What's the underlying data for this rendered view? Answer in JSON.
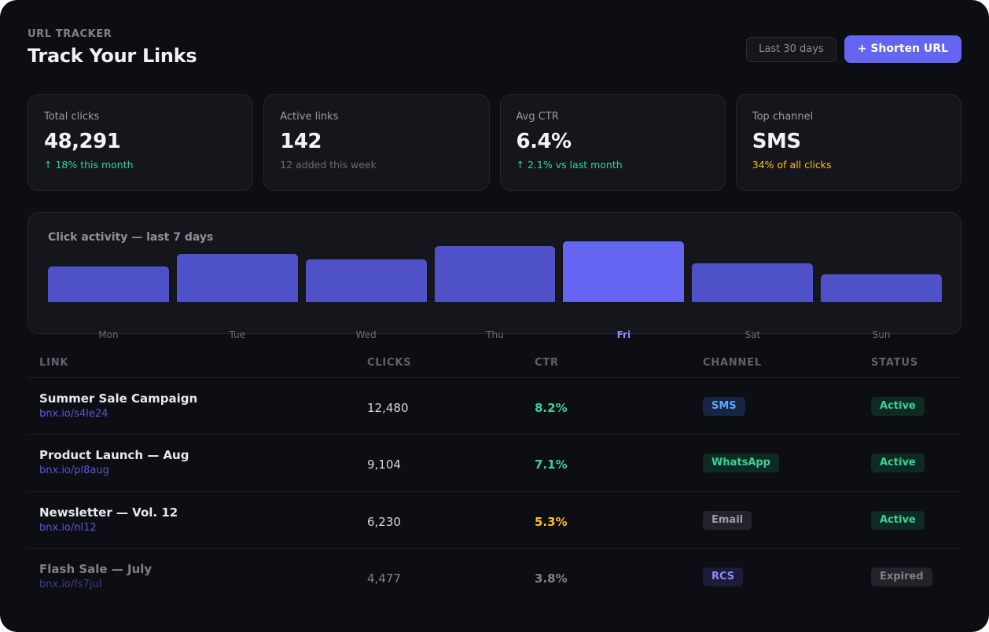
{
  "header": {
    "eyebrow": "URL TRACKER",
    "title": "Track Your Links",
    "range_button": "Last 30 days",
    "primary_button": "+ Shorten URL"
  },
  "stats": [
    {
      "label": "Total clicks",
      "value": "48,291",
      "sub": "↑ 18% this month",
      "sub_color": "#34d399"
    },
    {
      "label": "Active links",
      "value": "142",
      "sub": "12 added this week",
      "sub_color": "#6a6c75"
    },
    {
      "label": "Avg CTR",
      "value": "6.4%",
      "sub": "↑ 2.1% vs last month",
      "sub_color": "#34d399"
    },
    {
      "label": "Top channel",
      "value": "SMS",
      "sub": "34% of all clicks",
      "sub_color": "#fbbf24"
    }
  ],
  "chart_data": {
    "type": "bar",
    "title": "Click activity — last 7 days",
    "categories": [
      "Mon",
      "Tue",
      "Wed",
      "Thu",
      "Fri",
      "Sat",
      "Sun"
    ],
    "values": [
      43,
      59,
      52,
      68,
      74,
      47,
      34
    ],
    "highlight": "Fri",
    "bar_color": "#4f52c6",
    "highlight_color": "#6466f1",
    "grid": false
  },
  "table": {
    "columns": [
      "LINK",
      "CLICKS",
      "CTR",
      "CHANNEL",
      "STATUS"
    ],
    "rows": [
      {
        "name": "Summer Sale Campaign",
        "url": "bnx.io/s4le24",
        "clicks": "12,480",
        "ctr": "8.2%",
        "ctr_color": "#34d399",
        "channel": "SMS",
        "channel_bg": "#172544",
        "channel_fg": "#60a5fa",
        "status": "Active",
        "status_bg": "#0f2a22",
        "status_fg": "#34d399",
        "muted": false
      },
      {
        "name": "Product Launch — Aug",
        "url": "bnx.io/pl8aug",
        "clicks": "9,104",
        "ctr": "7.1%",
        "ctr_color": "#34d399",
        "channel": "WhatsApp",
        "channel_bg": "#0f2a22",
        "channel_fg": "#34d399",
        "status": "Active",
        "status_bg": "#0f2a22",
        "status_fg": "#34d399",
        "muted": false
      },
      {
        "name": "Newsletter — Vol. 12",
        "url": "bnx.io/nl12",
        "clicks": "6,230",
        "ctr": "5.3%",
        "ctr_color": "#fbbf24",
        "channel": "Email",
        "channel_bg": "#23242b",
        "channel_fg": "#9a9ca6",
        "status": "Active",
        "status_bg": "#0f2a22",
        "status_fg": "#34d399",
        "muted": false
      },
      {
        "name": "Flash Sale — July",
        "url": "bnx.io/fs7jul",
        "clicks": "4,477",
        "ctr": "3.8%",
        "ctr_color": "#7f818a",
        "channel": "RCS",
        "channel_bg": "#1d1b3a",
        "channel_fg": "#8b8cf6",
        "status": "Expired",
        "status_bg": "#23242b",
        "status_fg": "#7f818a",
        "muted": true
      }
    ]
  }
}
